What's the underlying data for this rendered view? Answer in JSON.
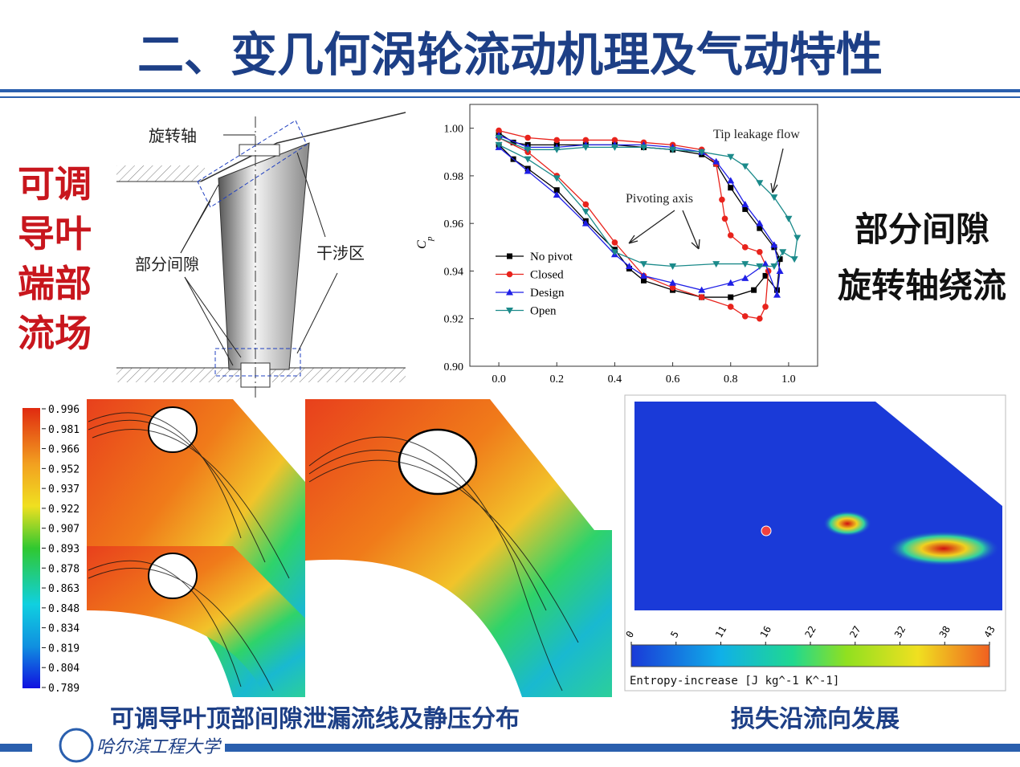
{
  "header": {
    "title": "二、变几何涡轮流动机理及气动特性"
  },
  "side_label": [
    "可调",
    "导叶",
    "端部",
    "流场"
  ],
  "diagram": {
    "labels": [
      "旋转轴",
      "部分间隙",
      "干涉区"
    ]
  },
  "right_label": [
    "部分间隙",
    "旋转轴绕流"
  ],
  "chart_data": {
    "type": "line",
    "y_label": "C",
    "y_label_sub": "p",
    "annotations": [
      "Tip leakage flow",
      "Pivoting axis"
    ],
    "xlim": [
      -0.1,
      1.1
    ],
    "ylim": [
      0.9,
      1.01
    ],
    "xticks": [
      {
        "value": 0,
        "label": "0.0"
      },
      0.2,
      0.4,
      0.6,
      0.8,
      {
        "value": 1,
        "label": "1.0"
      }
    ],
    "yticks": [
      {
        "value": 0.9,
        "label": "0.90"
      },
      0.92,
      0.94,
      0.96,
      0.98,
      {
        "value": 1.0,
        "label": "1.00"
      }
    ],
    "series": [
      {
        "name": "No pivot",
        "color": "#000000",
        "marker": "square",
        "x": [
          0.0,
          0.05,
          0.1,
          0.2,
          0.3,
          0.4,
          0.5,
          0.6,
          0.7,
          0.75,
          0.8,
          0.85,
          0.9,
          0.95,
          0.97,
          0.96,
          0.92,
          0.88,
          0.8,
          0.7,
          0.6,
          0.5,
          0.45,
          0.4,
          0.3,
          0.2,
          0.1,
          0.05,
          0.0
        ],
        "values": [
          0.998,
          0.994,
          0.993,
          0.993,
          0.993,
          0.993,
          0.992,
          0.991,
          0.989,
          0.985,
          0.975,
          0.966,
          0.958,
          0.95,
          0.945,
          0.932,
          0.938,
          0.932,
          0.929,
          0.929,
          0.932,
          0.936,
          0.941,
          0.949,
          0.961,
          0.974,
          0.983,
          0.987,
          0.993
        ]
      },
      {
        "name": "Closed",
        "color": "#e8231c",
        "marker": "circle",
        "x": [
          0.0,
          0.1,
          0.2,
          0.3,
          0.4,
          0.5,
          0.6,
          0.7,
          0.75,
          0.77,
          0.78,
          0.8,
          0.85,
          0.9,
          0.93,
          0.92,
          0.9,
          0.85,
          0.8,
          0.7,
          0.6,
          0.5,
          0.4,
          0.3,
          0.2,
          0.1,
          0.0
        ],
        "values": [
          0.999,
          0.996,
          0.995,
          0.995,
          0.995,
          0.994,
          0.993,
          0.991,
          0.985,
          0.97,
          0.962,
          0.955,
          0.95,
          0.948,
          0.94,
          0.925,
          0.92,
          0.921,
          0.925,
          0.929,
          0.933,
          0.938,
          0.952,
          0.968,
          0.98,
          0.99,
          0.996
        ]
      },
      {
        "name": "Design",
        "color": "#1f1fe6",
        "marker": "triangle-up",
        "x": [
          0.0,
          0.1,
          0.2,
          0.3,
          0.4,
          0.5,
          0.6,
          0.7,
          0.75,
          0.8,
          0.85,
          0.9,
          0.95,
          0.97,
          0.96,
          0.92,
          0.85,
          0.8,
          0.7,
          0.6,
          0.5,
          0.45,
          0.4,
          0.3,
          0.2,
          0.1,
          0.0
        ],
        "values": [
          0.997,
          0.992,
          0.992,
          0.993,
          0.993,
          0.993,
          0.992,
          0.99,
          0.986,
          0.978,
          0.968,
          0.96,
          0.951,
          0.94,
          0.93,
          0.943,
          0.937,
          0.935,
          0.932,
          0.935,
          0.938,
          0.942,
          0.947,
          0.96,
          0.972,
          0.982,
          0.992
        ]
      },
      {
        "name": "Open",
        "color": "#1b8a8a",
        "marker": "triangle-down",
        "x": [
          0.0,
          0.1,
          0.2,
          0.3,
          0.4,
          0.5,
          0.6,
          0.7,
          0.8,
          0.85,
          0.9,
          0.95,
          1.0,
          1.03,
          1.02,
          0.98,
          0.95,
          0.9,
          0.85,
          0.75,
          0.6,
          0.5,
          0.4,
          0.3,
          0.2,
          0.1,
          0.0
        ],
        "values": [
          0.996,
          0.991,
          0.991,
          0.992,
          0.992,
          0.992,
          0.991,
          0.99,
          0.988,
          0.984,
          0.977,
          0.971,
          0.962,
          0.954,
          0.945,
          0.948,
          0.942,
          0.942,
          0.943,
          0.943,
          0.942,
          0.943,
          0.948,
          0.965,
          0.979,
          0.987,
          0.993
        ]
      }
    ]
  },
  "pressure_colorbar": {
    "ticks": [
      0.996,
      0.981,
      0.966,
      0.952,
      0.937,
      0.922,
      0.907,
      0.893,
      0.878,
      0.863,
      0.848,
      0.834,
      0.819,
      0.804,
      0.789
    ]
  },
  "entropy_colorbar": {
    "ticks": [
      0,
      5,
      11,
      16,
      22,
      27,
      32,
      38,
      43
    ],
    "label": "Entropy-increase [J kg^-1 K^-1]"
  },
  "captions": [
    "可调导叶顶部间隙泄漏流线及静压分布",
    "损失沿流向发展"
  ],
  "footer": {
    "university": "哈尔滨工程大学"
  }
}
